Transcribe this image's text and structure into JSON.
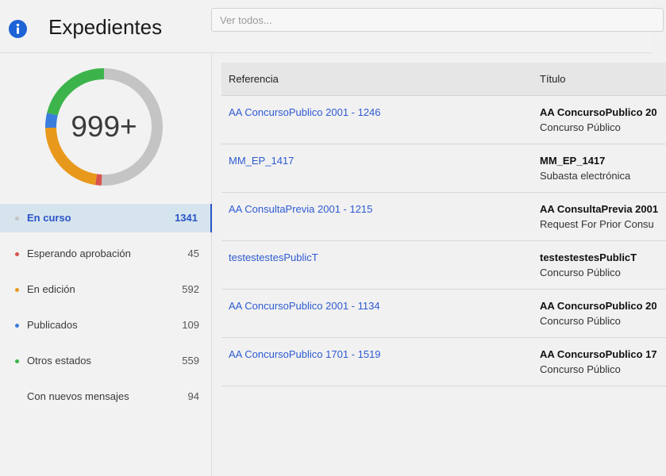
{
  "header": {
    "title": "Expedientes",
    "search_placeholder": "Ver todos..."
  },
  "summary": {
    "total_label": "999+",
    "chart_data": {
      "type": "pie",
      "style": "donut",
      "categories": [
        "En curso",
        "Esperando aprobación",
        "En edición",
        "Publicados",
        "Otros estados"
      ],
      "values": [
        1341,
        45,
        592,
        109,
        559
      ],
      "colors": [
        "#c4c4c4",
        "#d9534f",
        "#e8991c",
        "#3b7ddd",
        "#3cb44b"
      ]
    }
  },
  "statuses": [
    {
      "label": "En curso",
      "count": "1341",
      "color": "#c4c4c4",
      "active": true
    },
    {
      "label": "Esperando aprobación",
      "count": "45",
      "color": "#d9534f"
    },
    {
      "label": "En edición",
      "count": "592",
      "color": "#e8991c"
    },
    {
      "label": "Publicados",
      "count": "109",
      "color": "#3b7ddd"
    },
    {
      "label": "Otros estados",
      "count": "559",
      "color": "#3cb44b"
    },
    {
      "label": "Con nuevos mensajes",
      "count": "94",
      "color": ""
    }
  ],
  "table": {
    "columns": {
      "reference": "Referencia",
      "title": "Título"
    },
    "rows": [
      {
        "reference": "AA ConcursoPublico 2001 - 1246",
        "title": "AA ConcursoPublico 20",
        "subtitle": "Concurso Público"
      },
      {
        "reference": "MM_EP_1417",
        "title": "MM_EP_1417",
        "subtitle": "Subasta electrónica"
      },
      {
        "reference": "AA ConsultaPrevia 2001 - 1215",
        "title": "AA ConsultaPrevia 2001",
        "subtitle": "Request For Prior Consu"
      },
      {
        "reference": "testestestesPublicT",
        "title": "testestestesPublicT",
        "subtitle": "Concurso Público"
      },
      {
        "reference": "AA ConcursoPublico 2001 - 1134",
        "title": "AA ConcursoPublico 20",
        "subtitle": "Concurso Público"
      },
      {
        "reference": "AA ConcursoPublico 1701 - 1519",
        "title": "AA ConcursoPublico 17",
        "subtitle": "Concurso Público"
      }
    ]
  },
  "colors": {
    "accent": "#2a55c8",
    "link": "#2e5bd2",
    "info_icon": "#1e63d6"
  }
}
